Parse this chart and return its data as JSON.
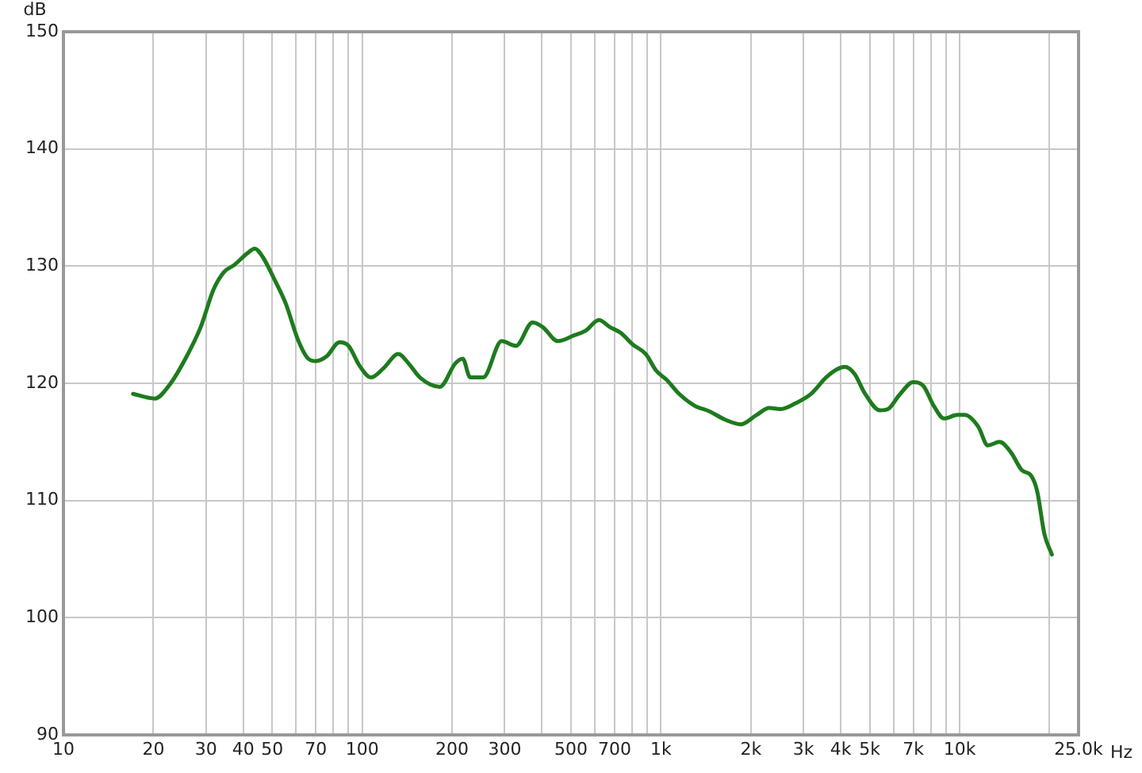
{
  "chart_data": {
    "type": "line",
    "xlabel": "Hz",
    "ylabel": "dB",
    "log": "x",
    "grid": true,
    "legend": false,
    "marker": "none",
    "line_style": "solid",
    "xlim": [
      10,
      25000
    ],
    "ylim": [
      90,
      150
    ],
    "xticks": [
      10,
      20,
      30,
      40,
      50,
      {
        "value": 60,
        "label": null
      },
      70,
      {
        "value": 80,
        "label": null
      },
      {
        "value": 90,
        "label": null
      },
      100,
      200,
      300,
      {
        "value": 400,
        "label": null
      },
      500,
      {
        "value": 600,
        "label": null
      },
      700,
      {
        "value": 800,
        "label": null
      },
      {
        "value": 900,
        "label": null
      },
      {
        "value": 1000,
        "label": "1k"
      },
      {
        "value": 2000,
        "label": "2k"
      },
      {
        "value": 3000,
        "label": "3k"
      },
      {
        "value": 4000,
        "label": "4k"
      },
      {
        "value": 5000,
        "label": "5k"
      },
      {
        "value": 6000,
        "label": null
      },
      {
        "value": 7000,
        "label": "7k"
      },
      {
        "value": 8000,
        "label": null
      },
      {
        "value": 9000,
        "label": null
      },
      {
        "value": 10000,
        "label": "10k"
      },
      {
        "value": 20000,
        "label": null
      },
      {
        "value": 25000,
        "label": "25.0k"
      }
    ],
    "yticks": [
      90,
      100,
      110,
      120,
      130,
      140,
      150
    ],
    "series": [
      {
        "color": "#1e7b1e",
        "x": [
          17.1,
          20.2,
          22.7,
          25.6,
          28.8,
          31.8,
          34.5,
          37.3,
          41.3,
          43.7,
          46.4,
          51,
          55.5,
          61,
          66,
          70,
          76,
          84,
          90,
          98,
          107,
          118,
          132,
          144,
          156,
          182,
          205,
          217,
          230,
          254,
          293,
          327,
          372,
          402,
          452,
          513,
          560,
          620,
          675,
          734,
          806,
          890,
          963,
          1045,
          1150,
          1295,
          1456,
          1640,
          1852,
          2090,
          2305,
          2513,
          2825,
          3180,
          3570,
          3890,
          4120,
          4450,
          4800,
          5410,
          5750,
          6280,
          6990,
          7550,
          8180,
          8870,
          9830,
          10400,
          11540,
          12430,
          13600,
          14850,
          16130,
          17370,
          18170,
          19230,
          20350
        ],
        "values": [
          119.1,
          118.7,
          119.9,
          122.1,
          124.8,
          128.0,
          129.5,
          130.1,
          131.1,
          131.5,
          130.8,
          128.8,
          126.8,
          123.7,
          122.1,
          121.9,
          122.3,
          123.5,
          123.2,
          121.5,
          120.5,
          121.3,
          122.5,
          121.6,
          120.5,
          119.7,
          121.7,
          122.1,
          120.5,
          120.5,
          123.6,
          123.2,
          125.2,
          124.8,
          123.6,
          124.1,
          124.5,
          125.4,
          124.8,
          124.3,
          123.3,
          122.5,
          121.1,
          120.3,
          119.1,
          118.1,
          117.6,
          116.9,
          116.5,
          117.3,
          117.9,
          117.8,
          118.3,
          119.1,
          120.5,
          121.2,
          121.4,
          120.8,
          119.2,
          117.7,
          117.8,
          119.0,
          120.1,
          119.8,
          118.1,
          117.0,
          117.3,
          117.3,
          116.3,
          114.7,
          115.0,
          114.1,
          112.6,
          112.1,
          110.8,
          107.1,
          105.4
        ]
      }
    ]
  }
}
